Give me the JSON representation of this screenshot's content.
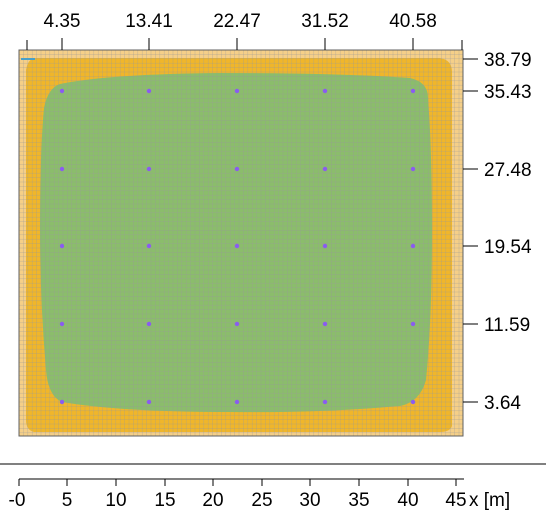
{
  "top_ticks": [
    "4.35",
    "13.41",
    "22.47",
    "31.52",
    "40.58"
  ],
  "right_ticks": [
    "38.79",
    "35.43",
    "27.48",
    "19.54",
    "11.59",
    "3.64"
  ],
  "scale_ticks": [
    "-0",
    "5",
    "10",
    "15",
    "20",
    "25",
    "30",
    "35",
    "40",
    "45"
  ],
  "scale_unit": "x [m]",
  "colors": {
    "outer_zone": "#f5cf88",
    "mid_zone": "#f0b62a",
    "inner_zone": "#8bbd6b",
    "grid_line": "#9a9a9a",
    "luminaire_dot": "#8a5cf0",
    "frame": "#606060"
  }
}
